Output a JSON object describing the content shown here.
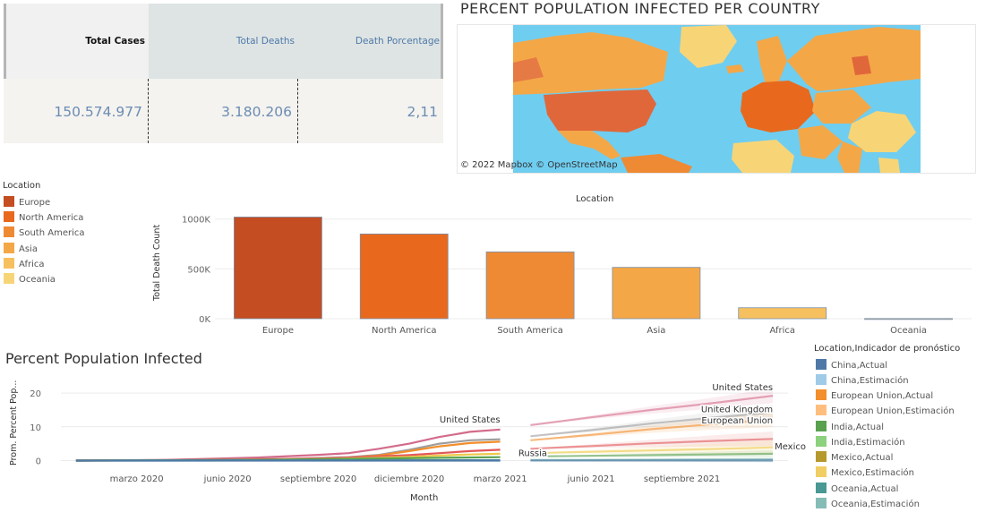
{
  "kpi": {
    "headers": [
      "Total Cases",
      "Total Deaths",
      "Death Porcentage"
    ],
    "values": [
      "150.574.977",
      "3.180.206",
      "2,11"
    ]
  },
  "map": {
    "title": "PERCENT POPULATION INFECTED PER COUNTRY",
    "attribution": "© 2022 Mapbox  © OpenStreetMap"
  },
  "location_legend": {
    "title": "Location",
    "items": [
      {
        "label": "Europe",
        "color": "#c44d22"
      },
      {
        "label": "North America",
        "color": "#e8691d"
      },
      {
        "label": "South America",
        "color": "#ef8a34"
      },
      {
        "label": "Asia",
        "color": "#f4a747"
      },
      {
        "label": "Africa",
        "color": "#f7c05f"
      },
      {
        "label": "Oceania",
        "color": "#f7d577"
      }
    ]
  },
  "chart_data": [
    {
      "type": "bar",
      "title": "Location",
      "ylabel": "Total Death Count",
      "categories": [
        "Europe",
        "North America",
        "South America",
        "Asia",
        "Africa",
        "Oceania"
      ],
      "values": [
        1020000,
        850000,
        670000,
        515000,
        110000,
        1500
      ],
      "colors": [
        "#c44d22",
        "#e8691d",
        "#ef8a34",
        "#f4a747",
        "#f7c05f",
        "#f7d577"
      ],
      "ylim": [
        0,
        1150000
      ],
      "yticks": [
        {
          "v": 0,
          "label": "0K"
        },
        {
          "v": 500000,
          "label": "500K"
        },
        {
          "v": 1000000,
          "label": "1000K"
        }
      ],
      "grid": true
    },
    {
      "type": "line",
      "title": "Percent Population Infected",
      "ylabel": "Prom. Percent Pop...",
      "xlabel": "Month",
      "xticks": [
        "marzo 2020",
        "junio 2020",
        "septiembre 2020",
        "diciembre 2020",
        "marzo 2021",
        "junio 2021",
        "septiembre 2021"
      ],
      "ylim": [
        -2,
        24
      ],
      "yticks": [
        0,
        10,
        20
      ],
      "forecast_start_month": 13,
      "series": [
        {
          "name": "United States",
          "color": "#d36b8a",
          "label": "United States",
          "actual": [
            [
              0,
              0
            ],
            [
              3,
              0.2
            ],
            [
              6,
              0.9
            ],
            [
              7,
              1.3
            ],
            [
              8,
              1.7
            ],
            [
              9,
              2.2
            ],
            [
              10,
              3.5
            ],
            [
              11,
              5.0
            ],
            [
              12,
              7.0
            ],
            [
              13,
              8.5
            ],
            [
              14,
              9.2
            ]
          ],
          "forecast": [
            [
              15,
              10.5
            ],
            [
              17,
              12.8
            ],
            [
              19,
              15.0
            ],
            [
              21,
              17.0
            ],
            [
              23,
              19.2
            ]
          ]
        },
        {
          "name": "United Kingdom",
          "color": "#9e9e9e",
          "label": "United Kingdom",
          "actual": [
            [
              0,
              0
            ],
            [
              4,
              0.1
            ],
            [
              7,
              0.5
            ],
            [
              9,
              1.0
            ],
            [
              10,
              1.7
            ],
            [
              11,
              3.2
            ],
            [
              12,
              5.0
            ],
            [
              13,
              6.0
            ],
            [
              14,
              6.3
            ]
          ],
          "forecast": [
            [
              15,
              7.2
            ],
            [
              17,
              9.0
            ],
            [
              19,
              11.0
            ],
            [
              21,
              12.7
            ],
            [
              23,
              14.3
            ]
          ]
        },
        {
          "name": "European Union",
          "color": "#f28e2b",
          "label": "European Union",
          "actual": [
            [
              0,
              0
            ],
            [
              4,
              0.1
            ],
            [
              7,
              0.4
            ],
            [
              9,
              0.8
            ],
            [
              10,
              1.5
            ],
            [
              11,
              2.8
            ],
            [
              12,
              4.2
            ],
            [
              13,
              5.2
            ],
            [
              14,
              5.6
            ]
          ],
          "forecast": [
            [
              15,
              6.0
            ],
            [
              17,
              7.6
            ],
            [
              19,
              9.3
            ],
            [
              21,
              10.8
            ],
            [
              23,
              12.1
            ]
          ]
        },
        {
          "name": "Russia",
          "color": "#e15759",
          "label": "Russia",
          "actual": [
            [
              0,
              0
            ],
            [
              5,
              0.2
            ],
            [
              8,
              0.6
            ],
            [
              10,
              1.2
            ],
            [
              11,
              1.6
            ],
            [
              12,
              2.2
            ],
            [
              13,
              2.8
            ],
            [
              14,
              3.2
            ]
          ],
          "forecast": [
            [
              15,
              3.5
            ],
            [
              17,
              4.3
            ],
            [
              19,
              5.1
            ],
            [
              21,
              5.8
            ],
            [
              23,
              6.4
            ]
          ]
        },
        {
          "name": "Mexico",
          "color": "#edc948",
          "label": "Mexico",
          "actual": [
            [
              0,
              0
            ],
            [
              5,
              0.1
            ],
            [
              8,
              0.4
            ],
            [
              10,
              0.8
            ],
            [
              11,
              1.1
            ],
            [
              12,
              1.5
            ],
            [
              13,
              1.8
            ],
            [
              14,
              2.0
            ]
          ],
          "forecast": [
            [
              15,
              2.2
            ],
            [
              17,
              2.6
            ],
            [
              19,
              3.0
            ],
            [
              21,
              3.4
            ],
            [
              23,
              3.9
            ]
          ]
        },
        {
          "name": "India",
          "color": "#59a14f",
          "label": "",
          "actual": [
            [
              0,
              0
            ],
            [
              6,
              0.2
            ],
            [
              9,
              0.5
            ],
            [
              12,
              0.8
            ],
            [
              14,
              1.0
            ]
          ],
          "forecast": [
            [
              15,
              1.2
            ],
            [
              19,
              1.6
            ],
            [
              23,
              2.0
            ]
          ]
        },
        {
          "name": "Oceania",
          "color": "#499894",
          "label": "",
          "actual": [
            [
              0,
              0
            ],
            [
              14,
              0.1
            ]
          ],
          "forecast": [
            [
              15,
              0.15
            ],
            [
              23,
              0.3
            ]
          ]
        },
        {
          "name": "China",
          "color": "#4e79a7",
          "label": "",
          "actual": [
            [
              0,
              0
            ],
            [
              14,
              0.0
            ]
          ],
          "forecast": [
            [
              15,
              0.0
            ],
            [
              23,
              0.0
            ]
          ]
        }
      ]
    }
  ],
  "forecast_legend": {
    "title": "Location,Indicador de pronóstico",
    "items": [
      {
        "label": "China,Actual",
        "color": "#4e79a7"
      },
      {
        "label": "China,Estimación",
        "color": "#a0cbe8"
      },
      {
        "label": "European Union,Actual",
        "color": "#f28e2b"
      },
      {
        "label": "European Union,Estimación",
        "color": "#ffbe7d"
      },
      {
        "label": "India,Actual",
        "color": "#59a14f"
      },
      {
        "label": "India,Estimación",
        "color": "#8cd17d"
      },
      {
        "label": "Mexico,Actual",
        "color": "#b6992d"
      },
      {
        "label": "Mexico,Estimación",
        "color": "#f1ce63"
      },
      {
        "label": "Oceania,Actual",
        "color": "#499894"
      },
      {
        "label": "Oceania,Estimación",
        "color": "#86bcb6"
      }
    ]
  }
}
